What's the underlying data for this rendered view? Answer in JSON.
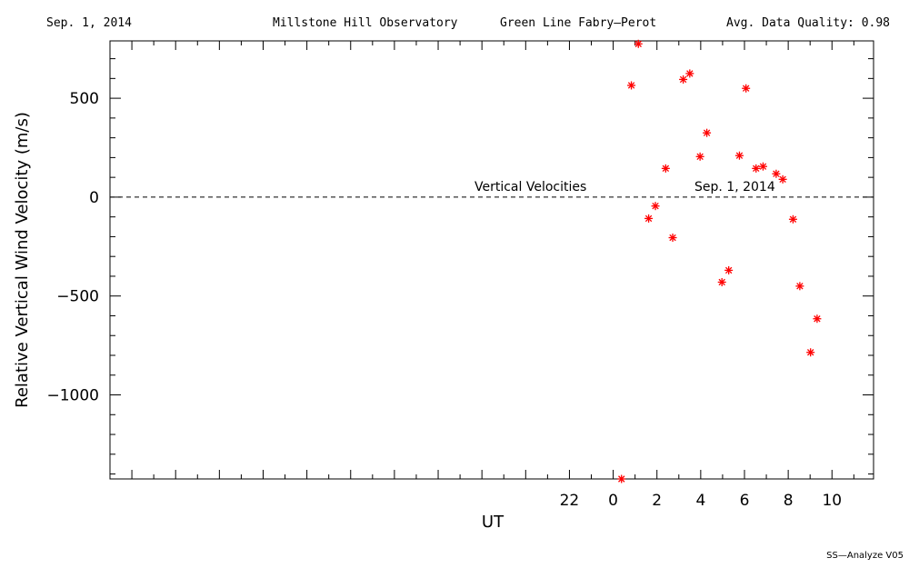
{
  "header": {
    "date": "Sep. 1, 2014",
    "observatory": "Millstone Hill Observatory",
    "instrument": "Green Line Fabry—Perot",
    "quality": "Avg. Data Quality: 0.98"
  },
  "footer": "SS—Analyze V05",
  "chart_data": {
    "type": "scatter",
    "xlabel": "UT",
    "ylabel": "Relative Vertical Wind Velocity (m/s)",
    "xlim": [
      -23,
      11.9
    ],
    "ylim": [
      -1425,
      790
    ],
    "xticks": [
      22,
      0,
      2,
      4,
      6,
      8,
      10
    ],
    "yticks": [
      500,
      0,
      -500,
      -1000
    ],
    "marker_color": "#ff0000",
    "annotations": [
      "Vertical Velocities",
      "Sep. 1, 2014"
    ],
    "reference_line": 0,
    "points": [
      {
        "x": 0.38,
        "y": -1425
      },
      {
        "x": 0.83,
        "y": 565
      },
      {
        "x": 1.15,
        "y": 775
      },
      {
        "x": 1.62,
        "y": -108
      },
      {
        "x": 1.93,
        "y": -45
      },
      {
        "x": 2.4,
        "y": 145
      },
      {
        "x": 2.72,
        "y": -205
      },
      {
        "x": 3.2,
        "y": 595
      },
      {
        "x": 3.5,
        "y": 625
      },
      {
        "x": 3.97,
        "y": 205
      },
      {
        "x": 4.28,
        "y": 325
      },
      {
        "x": 4.97,
        "y": -430
      },
      {
        "x": 5.28,
        "y": -370
      },
      {
        "x": 5.77,
        "y": 210
      },
      {
        "x": 6.07,
        "y": 550
      },
      {
        "x": 6.53,
        "y": 145
      },
      {
        "x": 6.85,
        "y": 155
      },
      {
        "x": 7.45,
        "y": 118
      },
      {
        "x": 7.75,
        "y": 90
      },
      {
        "x": 8.22,
        "y": -112
      },
      {
        "x": 8.53,
        "y": -450
      },
      {
        "x": 9.02,
        "y": -785
      },
      {
        "x": 9.32,
        "y": -615
      }
    ]
  }
}
